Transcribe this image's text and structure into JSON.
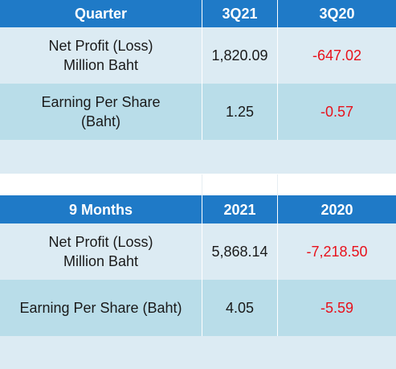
{
  "quarter_table": {
    "header": [
      "Quarter",
      "3Q21",
      "3Q20"
    ],
    "rows": [
      {
        "label_line1": "Net Profit (Loss)",
        "label_line2": "Million Baht",
        "v1": "1,820.09",
        "v2": "-647.02"
      },
      {
        "label_line1": "Earning Per Share",
        "label_line2": "(Baht)",
        "v1": "1.25",
        "v2": "-0.57"
      }
    ]
  },
  "nine_month_table": {
    "header": [
      "9 Months",
      "2021",
      "2020"
    ],
    "rows": [
      {
        "label_line1": "Net Profit (Loss)",
        "label_line2": "Million Baht",
        "v1": "5,868.14",
        "v2": "-7,218.50"
      },
      {
        "label_line1": "Earning Per Share (Baht)",
        "v1": "4.05",
        "v2": "-5.59"
      }
    ]
  },
  "colors": {
    "header_bg": "#1f7ac7",
    "row_light": "#dcebf3",
    "row_mid": "#b9dde9",
    "negative": "#e8111b"
  }
}
